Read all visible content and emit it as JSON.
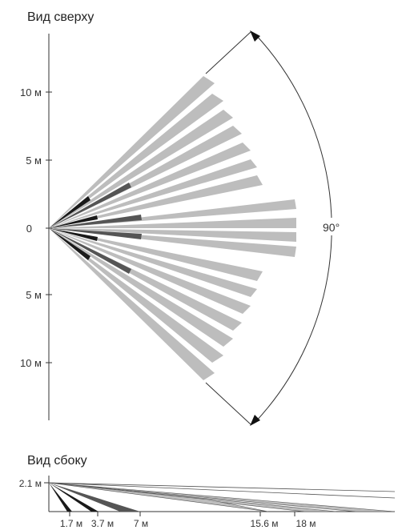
{
  "top_view": {
    "title": "Вид сверху",
    "tick_labels": [
      "10 м",
      "5 м",
      "0",
      "5 м",
      "10 м"
    ],
    "angle_label": "90°",
    "fan_angle_deg": 90,
    "zones": {
      "near": {
        "count": 3,
        "color": "#1a1a1a"
      },
      "mid": {
        "count": 3,
        "color": "#555555"
      },
      "far": {
        "count": 14,
        "color": "#bdbdbd"
      }
    }
  },
  "side_view": {
    "title": "Вид сбоку",
    "height_label": "2.1 м",
    "distance_labels": [
      "1.7 м",
      "3.7 м",
      "7 м",
      "15.6 м",
      "18 м"
    ]
  },
  "colors": {
    "near_zone": "#1a1a1a",
    "mid_zone": "#555555",
    "far_zone": "#bdbdbd",
    "axis": "#333333"
  }
}
